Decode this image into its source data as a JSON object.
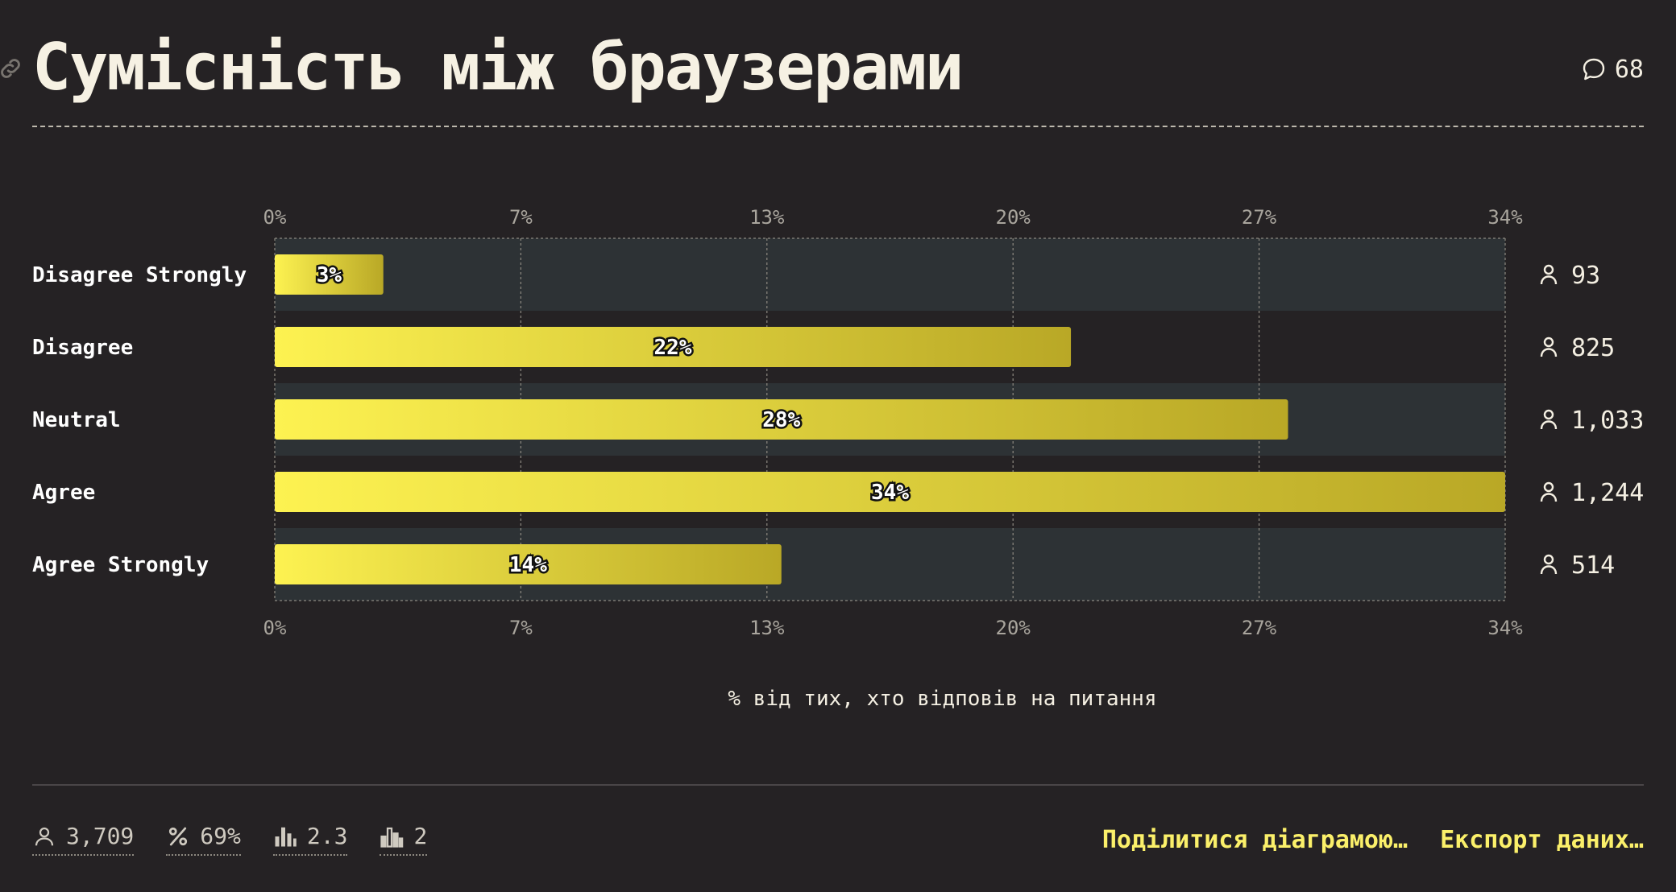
{
  "header": {
    "title": "Сумісність між браузерами",
    "comment_count": "68"
  },
  "chart_data": {
    "type": "bar",
    "orientation": "horizontal",
    "categories": [
      "Disagree Strongly",
      "Disagree",
      "Neutral",
      "Agree",
      "Agree Strongly"
    ],
    "values": [
      3,
      22,
      28,
      34,
      14
    ],
    "value_labels": [
      "3%",
      "22%",
      "28%",
      "34%",
      "14%"
    ],
    "counts": [
      "93",
      "825",
      "1,033",
      "1,244",
      "514"
    ],
    "ticks": [
      "0%",
      "7%",
      "13%",
      "20%",
      "27%",
      "34%"
    ],
    "xlim": [
      0,
      34
    ],
    "xlabel": "% від тих, хто відповів на питання",
    "grid": true,
    "colors": {
      "bar_start": "#fdf251",
      "bar_end": "#b9a826",
      "band": "#2d3235"
    }
  },
  "footer": {
    "stats": [
      {
        "icon": "user-icon",
        "value": "3,709"
      },
      {
        "icon": "percent-icon",
        "value": "69%"
      },
      {
        "icon": "bar-chart-icon",
        "value": "2.3"
      },
      {
        "icon": "bar-chart-outline-icon",
        "value": "2"
      }
    ],
    "share_label": "Поділитися діаграмою…",
    "export_label": "Експорт даних…"
  }
}
